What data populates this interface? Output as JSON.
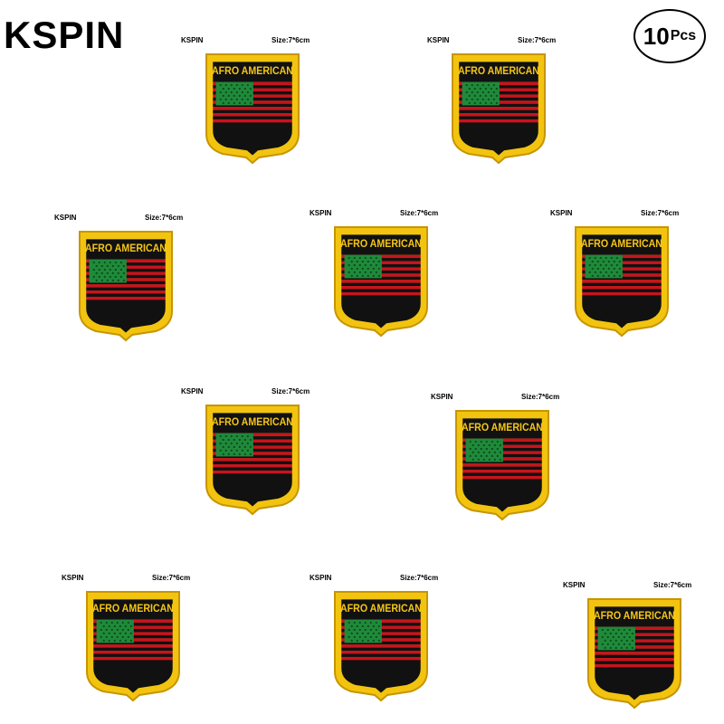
{
  "brand": "KSPIN",
  "count_badge": {
    "number": "10",
    "unit": "Pcs"
  },
  "patch_title": "AFRO AMERICAN",
  "colors": {
    "border": "#f2c40f",
    "border_dark": "#c79500",
    "title_bg": "#111111",
    "title_text": "#f5c518",
    "canton": "#1f8a3a",
    "star": "#0b4a1e",
    "stripe_red": "#c8141d",
    "stripe_black": "#111111"
  },
  "items": [
    {
      "brand_label": "KSPIN",
      "size_label": "Size:7*6cm"
    },
    {
      "brand_label": "KSPIN",
      "size_label": "Size:7*6cm"
    },
    {
      "brand_label": "KSPIN",
      "size_label": "Size:7*6cm"
    },
    {
      "brand_label": "KSPIN",
      "size_label": "Size:7*6cm"
    },
    {
      "brand_label": "KSPIN",
      "size_label": "Size:7*6cm"
    },
    {
      "brand_label": "KSPIN",
      "size_label": "Size:7*6cm"
    },
    {
      "brand_label": "KSPIN",
      "size_label": "Size:7*6cm"
    },
    {
      "brand_label": "KSPIN",
      "size_label": "Size:7*6cm"
    },
    {
      "brand_label": "KSPIN",
      "size_label": "Size:7*6cm"
    },
    {
      "brand_label": "KSPIN",
      "size_label": "Size:7*6cm"
    }
  ]
}
